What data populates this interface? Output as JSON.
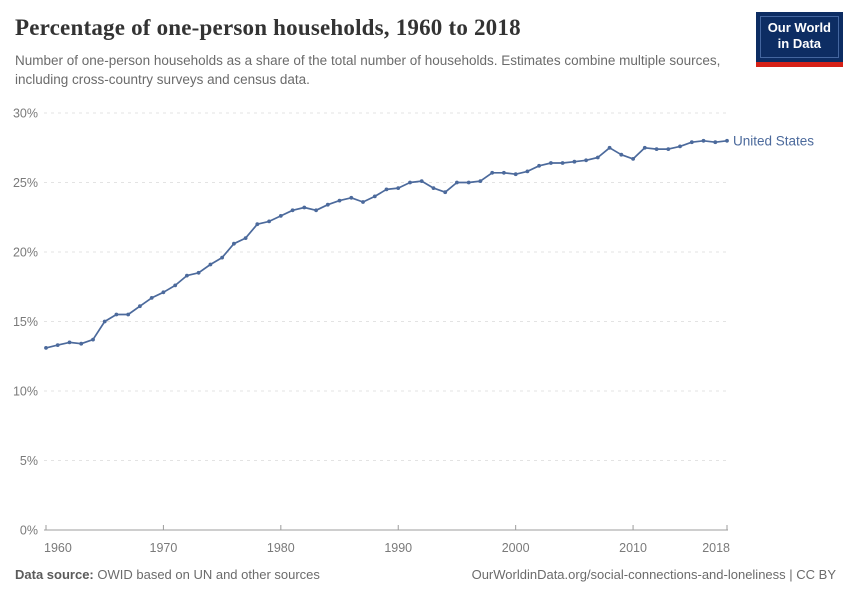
{
  "header": {
    "logo": {
      "line1": "Our World",
      "line2": "in Data"
    }
  },
  "chart_data": {
    "type": "line",
    "title": "Percentage of one-person households, 1960 to 2018",
    "subtitle": "Number of one-person households as a share of the total number of households. Estimates combine multiple sources, including cross-country surveys and census data.",
    "xlabel": "",
    "ylabel": "",
    "ylim": [
      0,
      30
    ],
    "yticks": [
      0,
      5,
      10,
      15,
      20,
      25,
      30
    ],
    "ytick_suffix": "%",
    "xticks": [
      1960,
      1970,
      1980,
      1990,
      2000,
      2010,
      2018
    ],
    "grid": "horizontal-dashed",
    "legend": "series-label-at-line-end",
    "series": [
      {
        "name": "United States",
        "color": "#4c6a9c",
        "x": [
          1960,
          1961,
          1962,
          1963,
          1964,
          1965,
          1966,
          1967,
          1968,
          1969,
          1970,
          1971,
          1972,
          1973,
          1974,
          1975,
          1976,
          1977,
          1978,
          1979,
          1980,
          1981,
          1982,
          1983,
          1984,
          1985,
          1986,
          1987,
          1988,
          1989,
          1990,
          1991,
          1992,
          1993,
          1994,
          1995,
          1996,
          1997,
          1998,
          1999,
          2000,
          2001,
          2002,
          2003,
          2004,
          2005,
          2006,
          2007,
          2008,
          2009,
          2010,
          2011,
          2012,
          2013,
          2014,
          2015,
          2016,
          2017,
          2018
        ],
        "values": [
          13.1,
          13.3,
          13.5,
          13.4,
          13.7,
          15.0,
          15.5,
          15.5,
          16.1,
          16.7,
          17.1,
          17.6,
          18.3,
          18.5,
          19.1,
          19.6,
          20.6,
          21.0,
          22.0,
          22.2,
          22.6,
          23.0,
          23.2,
          23.0,
          23.4,
          23.7,
          23.9,
          23.6,
          24.0,
          24.5,
          24.6,
          25.0,
          25.1,
          24.6,
          24.3,
          25.0,
          25.0,
          25.1,
          25.7,
          25.7,
          25.6,
          25.8,
          26.2,
          26.4,
          26.4,
          26.5,
          26.6,
          26.8,
          27.5,
          27.0,
          26.7,
          27.5,
          27.4,
          27.4,
          27.6,
          27.9,
          28.0,
          27.9,
          28.0
        ]
      }
    ]
  },
  "colors": {
    "accent_blue": "#4c6a9c",
    "gridline": "#e3e3e3",
    "axis": "#9c9c9c",
    "logo_bg": "#0d2d63",
    "logo_stripe": "#d62117"
  },
  "footer": {
    "datasource_label": "Data source:",
    "datasource_text": " OWID based on UN and other sources",
    "link_text": "OurWorldinData.org/social-connections-and-loneliness | CC BY"
  }
}
